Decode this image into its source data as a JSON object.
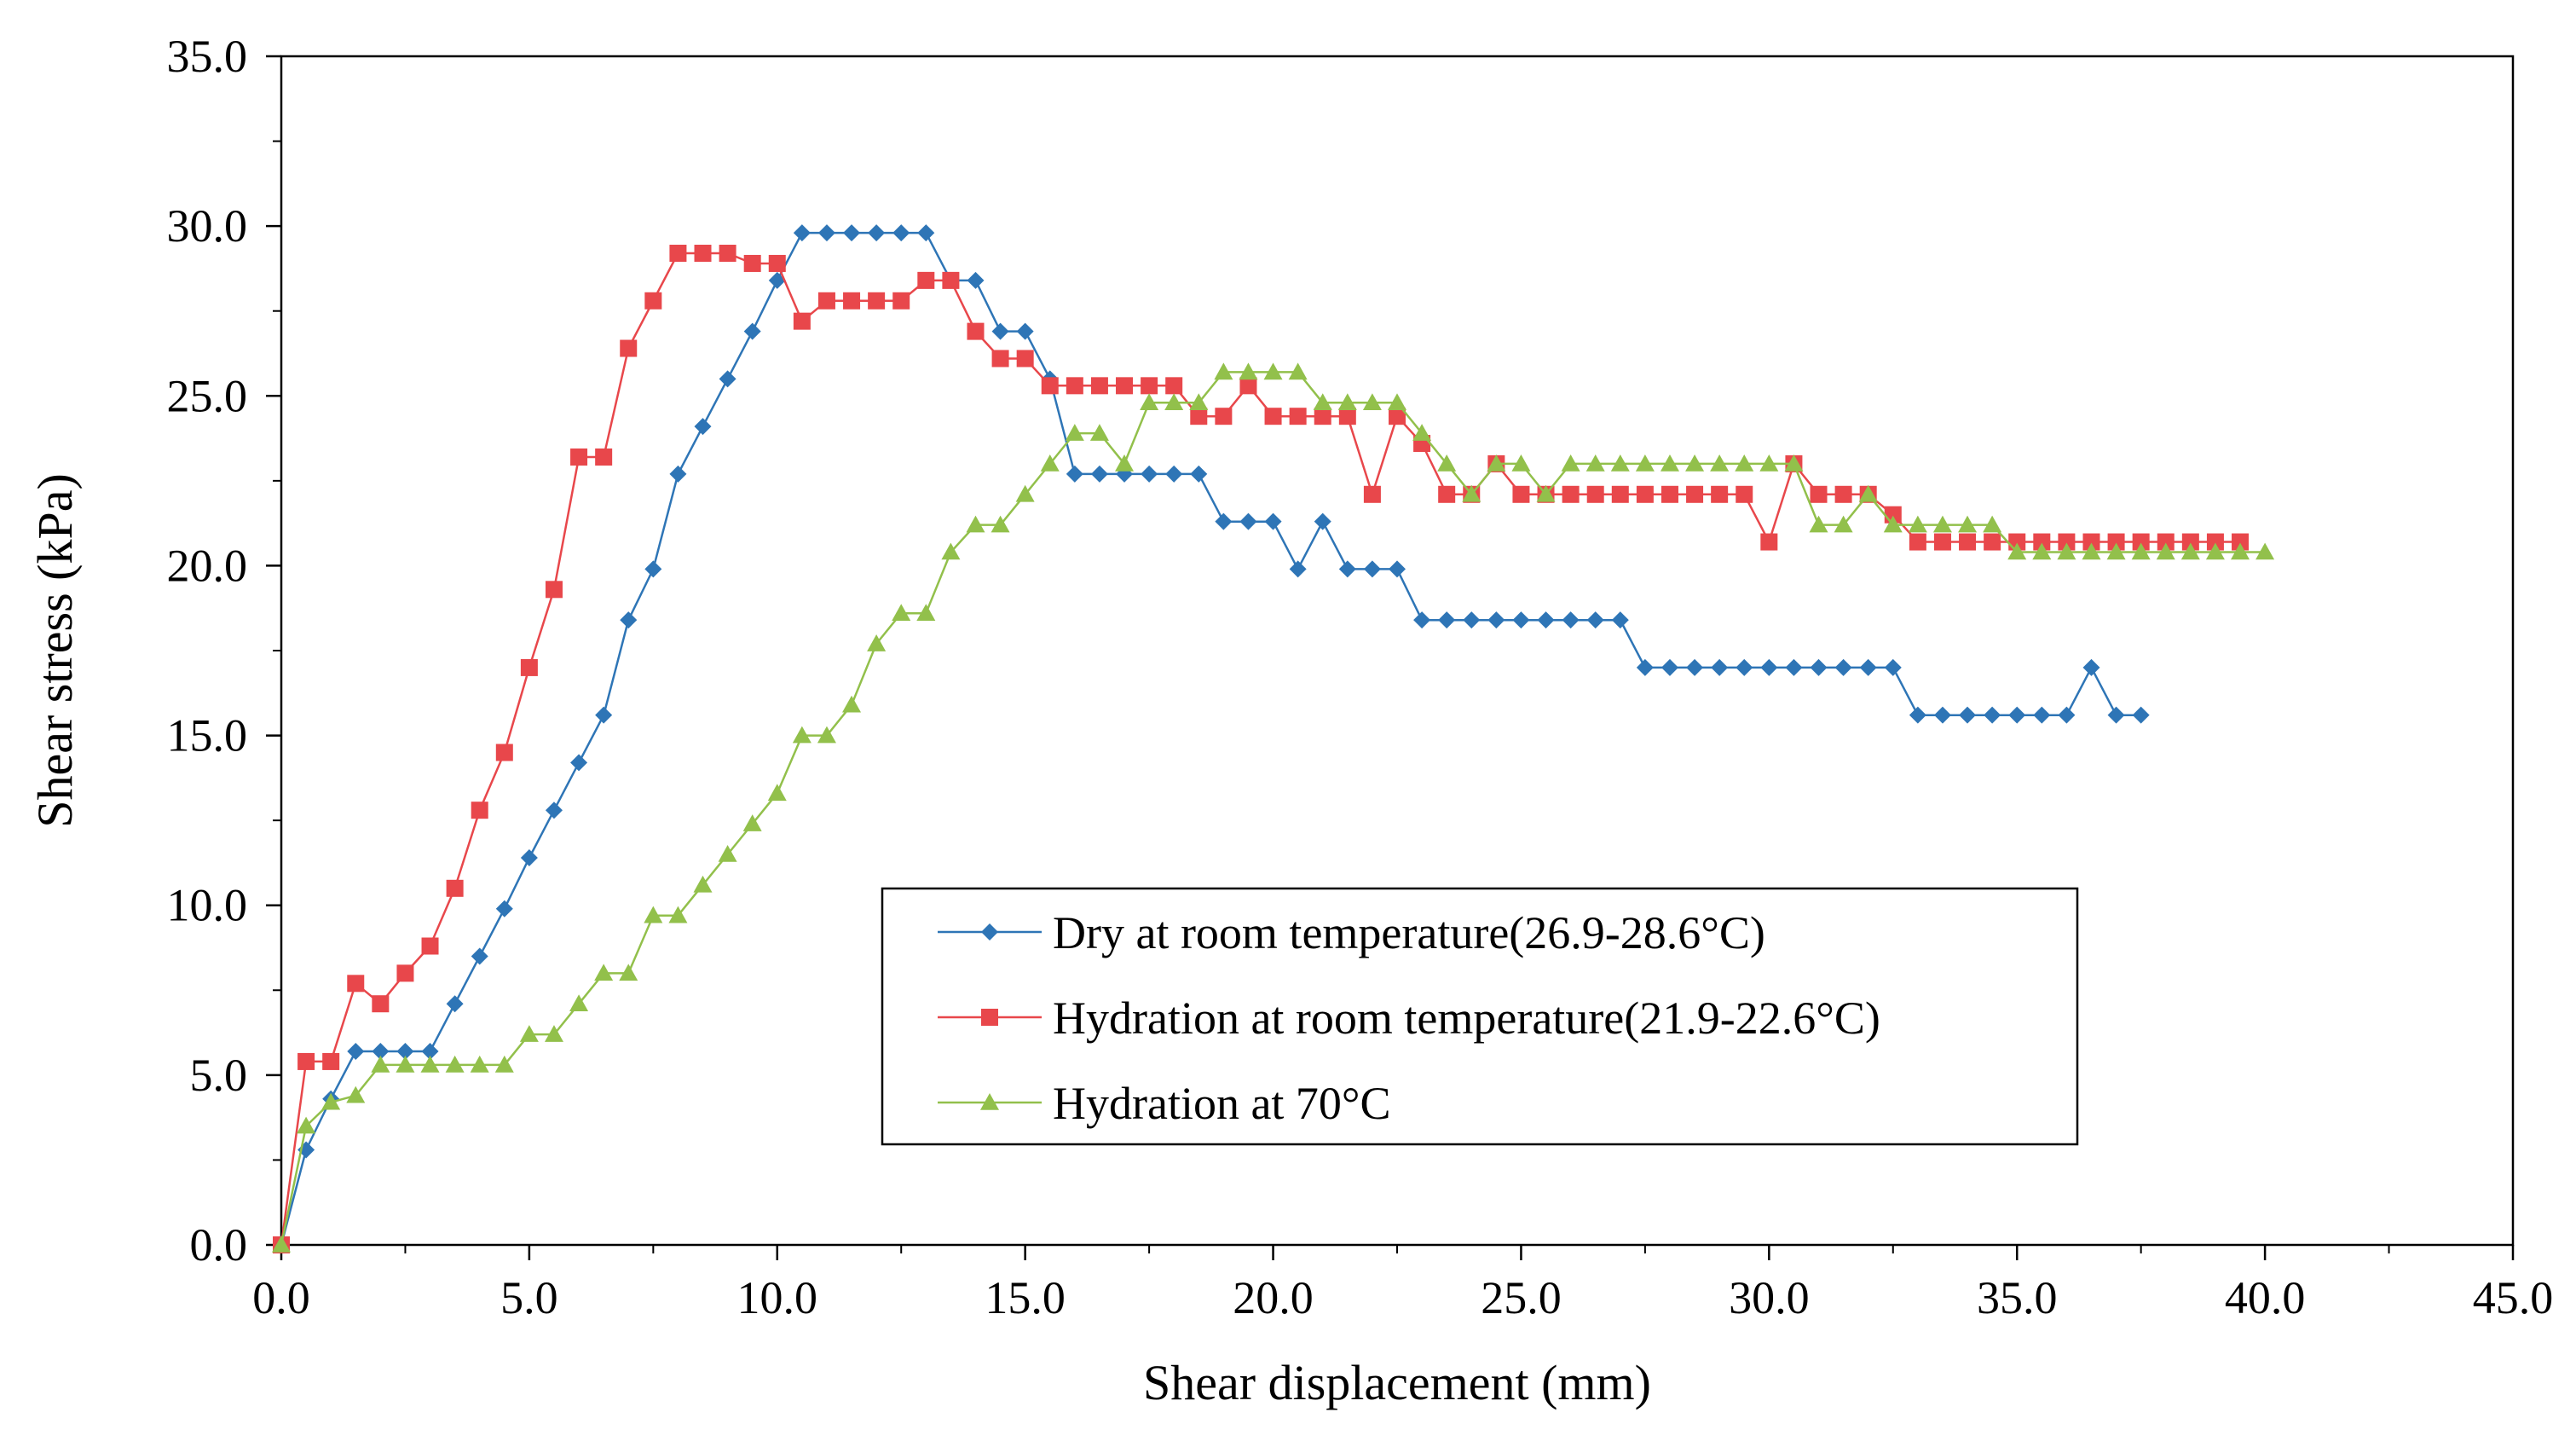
{
  "chart_data": {
    "type": "line",
    "title": "",
    "xlabel": "Shear displacement (mm)",
    "ylabel": "Shear stress (kPa)",
    "xlim": [
      0,
      45
    ],
    "ylim": [
      0,
      35
    ],
    "xticks": [
      0,
      5,
      10,
      15,
      20,
      25,
      30,
      35,
      40,
      45
    ],
    "yticks": [
      0,
      5,
      10,
      15,
      20,
      25,
      30,
      35
    ],
    "xtick_labels": [
      "0.0",
      "5.0",
      "10.0",
      "15.0",
      "20.0",
      "25.0",
      "30.0",
      "35.0",
      "40.0",
      "45.0"
    ],
    "ytick_labels": [
      "0.0",
      "5.0",
      "10.0",
      "15.0",
      "20.0",
      "25.0",
      "30.0",
      "35.0"
    ],
    "grid": false,
    "legend_position": "center",
    "series": [
      {
        "name": "Dry at room temperature(26.9-28.6°C)",
        "color": "#2E75B6",
        "marker": "diamond",
        "x": [
          0,
          0.5,
          1,
          1.5,
          2,
          2.5,
          3,
          3.5,
          4,
          4.5,
          5,
          5.5,
          6,
          6.5,
          7,
          7.5,
          8,
          8.5,
          9,
          9.5,
          10,
          10.5,
          11,
          11.5,
          12,
          12.5,
          13,
          13.5,
          14,
          14.5,
          15,
          15.5,
          16,
          16.5,
          17,
          17.5,
          18,
          18.5,
          19,
          19.5,
          20,
          20.5,
          21,
          21.5,
          22,
          22.5,
          23,
          23.5,
          24,
          24.5,
          25,
          25.5,
          26,
          26.5,
          27,
          27.5,
          28,
          28.5,
          29,
          29.5,
          30,
          30.5,
          31,
          31.5,
          32,
          32.5,
          33,
          33.5,
          34,
          34.5,
          35,
          35.5,
          36,
          36.5,
          37,
          37.5
        ],
        "y": [
          0,
          2.8,
          4.3,
          5.7,
          5.7,
          5.7,
          5.7,
          7.1,
          8.5,
          9.9,
          11.4,
          12.8,
          14.2,
          15.6,
          18.4,
          19.9,
          22.7,
          24.1,
          25.5,
          26.9,
          28.4,
          29.8,
          29.8,
          29.8,
          29.8,
          29.8,
          29.8,
          28.4,
          28.4,
          26.9,
          26.9,
          25.5,
          22.7,
          22.7,
          22.7,
          22.7,
          22.7,
          22.7,
          21.3,
          21.3,
          21.3,
          19.9,
          21.3,
          19.9,
          19.9,
          19.9,
          18.4,
          18.4,
          18.4,
          18.4,
          18.4,
          18.4,
          18.4,
          18.4,
          18.4,
          17.0,
          17.0,
          17.0,
          17.0,
          17.0,
          17.0,
          17.0,
          17.0,
          17.0,
          17.0,
          17.0,
          15.6,
          15.6,
          15.6,
          15.6,
          15.6,
          15.6,
          15.6,
          17.0,
          15.6,
          15.6
        ]
      },
      {
        "name": "Hydration at room temperature(21.9-22.6°C)",
        "color": "#E8474B",
        "marker": "square",
        "x": [
          0,
          0.5,
          1,
          1.5,
          2,
          2.5,
          3,
          3.5,
          4,
          4.5,
          5,
          5.5,
          6,
          6.5,
          7,
          7.5,
          8,
          8.5,
          9,
          9.5,
          10,
          10.5,
          11,
          11.5,
          12,
          12.5,
          13,
          13.5,
          14,
          14.5,
          15,
          15.5,
          16,
          16.5,
          17,
          17.5,
          18,
          18.5,
          19,
          19.5,
          20,
          20.5,
          21,
          21.5,
          22,
          22.5,
          23,
          23.5,
          24,
          24.5,
          25,
          25.5,
          26,
          26.5,
          27,
          27.5,
          28,
          28.5,
          29,
          29.5,
          30,
          30.5,
          31,
          31.5,
          32,
          32.5,
          33,
          33.5,
          34,
          34.5,
          35,
          35.5,
          36,
          36.5,
          37,
          37.5,
          38,
          38.5,
          39,
          39.5
        ],
        "y": [
          0,
          5.4,
          5.4,
          7.7,
          7.1,
          8.0,
          8.8,
          10.5,
          12.8,
          14.5,
          17.0,
          19.3,
          23.2,
          23.2,
          26.4,
          27.8,
          29.2,
          29.2,
          29.2,
          28.9,
          28.9,
          27.2,
          27.8,
          27.8,
          27.8,
          27.8,
          28.4,
          28.4,
          26.9,
          26.1,
          26.1,
          25.3,
          25.3,
          25.3,
          25.3,
          25.3,
          25.3,
          24.4,
          24.4,
          25.3,
          24.4,
          24.4,
          24.4,
          24.4,
          22.1,
          24.4,
          23.6,
          22.1,
          22.1,
          23.0,
          22.1,
          22.1,
          22.1,
          22.1,
          22.1,
          22.1,
          22.1,
          22.1,
          22.1,
          22.1,
          20.7,
          23.0,
          22.1,
          22.1,
          22.1,
          21.5,
          20.7,
          20.7,
          20.7,
          20.7,
          20.7,
          20.7,
          20.7,
          20.7,
          20.7,
          20.7,
          20.7,
          20.7,
          20.7,
          20.7
        ]
      },
      {
        "name": "Hydration at 70°C",
        "color": "#92C04B",
        "marker": "triangle",
        "x": [
          0,
          0.5,
          1,
          1.5,
          2,
          2.5,
          3,
          3.5,
          4,
          4.5,
          5,
          5.5,
          6,
          6.5,
          7,
          7.5,
          8,
          8.5,
          9,
          9.5,
          10,
          10.5,
          11,
          11.5,
          12,
          12.5,
          13,
          13.5,
          14,
          14.5,
          15,
          15.5,
          16,
          16.5,
          17,
          17.5,
          18,
          18.5,
          19,
          19.5,
          20,
          20.5,
          21,
          21.5,
          22,
          22.5,
          23,
          23.5,
          24,
          24.5,
          25,
          25.5,
          26,
          26.5,
          27,
          27.5,
          28,
          28.5,
          29,
          29.5,
          30,
          30.5,
          31,
          31.5,
          32,
          32.5,
          33,
          33.5,
          34,
          34.5,
          35,
          35.5,
          36,
          36.5,
          37,
          37.5,
          38,
          38.5,
          39,
          39.5,
          40
        ],
        "y": [
          0,
          3.5,
          4.2,
          4.4,
          5.3,
          5.3,
          5.3,
          5.3,
          5.3,
          5.3,
          6.2,
          6.2,
          7.1,
          8.0,
          8.0,
          9.7,
          9.7,
          10.6,
          11.5,
          12.4,
          13.3,
          15.0,
          15.0,
          15.9,
          17.7,
          18.6,
          18.6,
          20.4,
          21.2,
          21.2,
          22.1,
          23.0,
          23.9,
          23.9,
          23.0,
          24.8,
          24.8,
          24.8,
          25.7,
          25.7,
          25.7,
          25.7,
          24.8,
          24.8,
          24.8,
          24.8,
          23.9,
          23.0,
          22.1,
          23.0,
          23.0,
          22.1,
          23.0,
          23.0,
          23.0,
          23.0,
          23.0,
          23.0,
          23.0,
          23.0,
          23.0,
          23.0,
          21.2,
          21.2,
          22.1,
          21.2,
          21.2,
          21.2,
          21.2,
          21.2,
          20.4,
          20.4,
          20.4,
          20.4,
          20.4,
          20.4,
          20.4,
          20.4,
          20.4,
          20.4,
          20.4
        ]
      }
    ]
  }
}
